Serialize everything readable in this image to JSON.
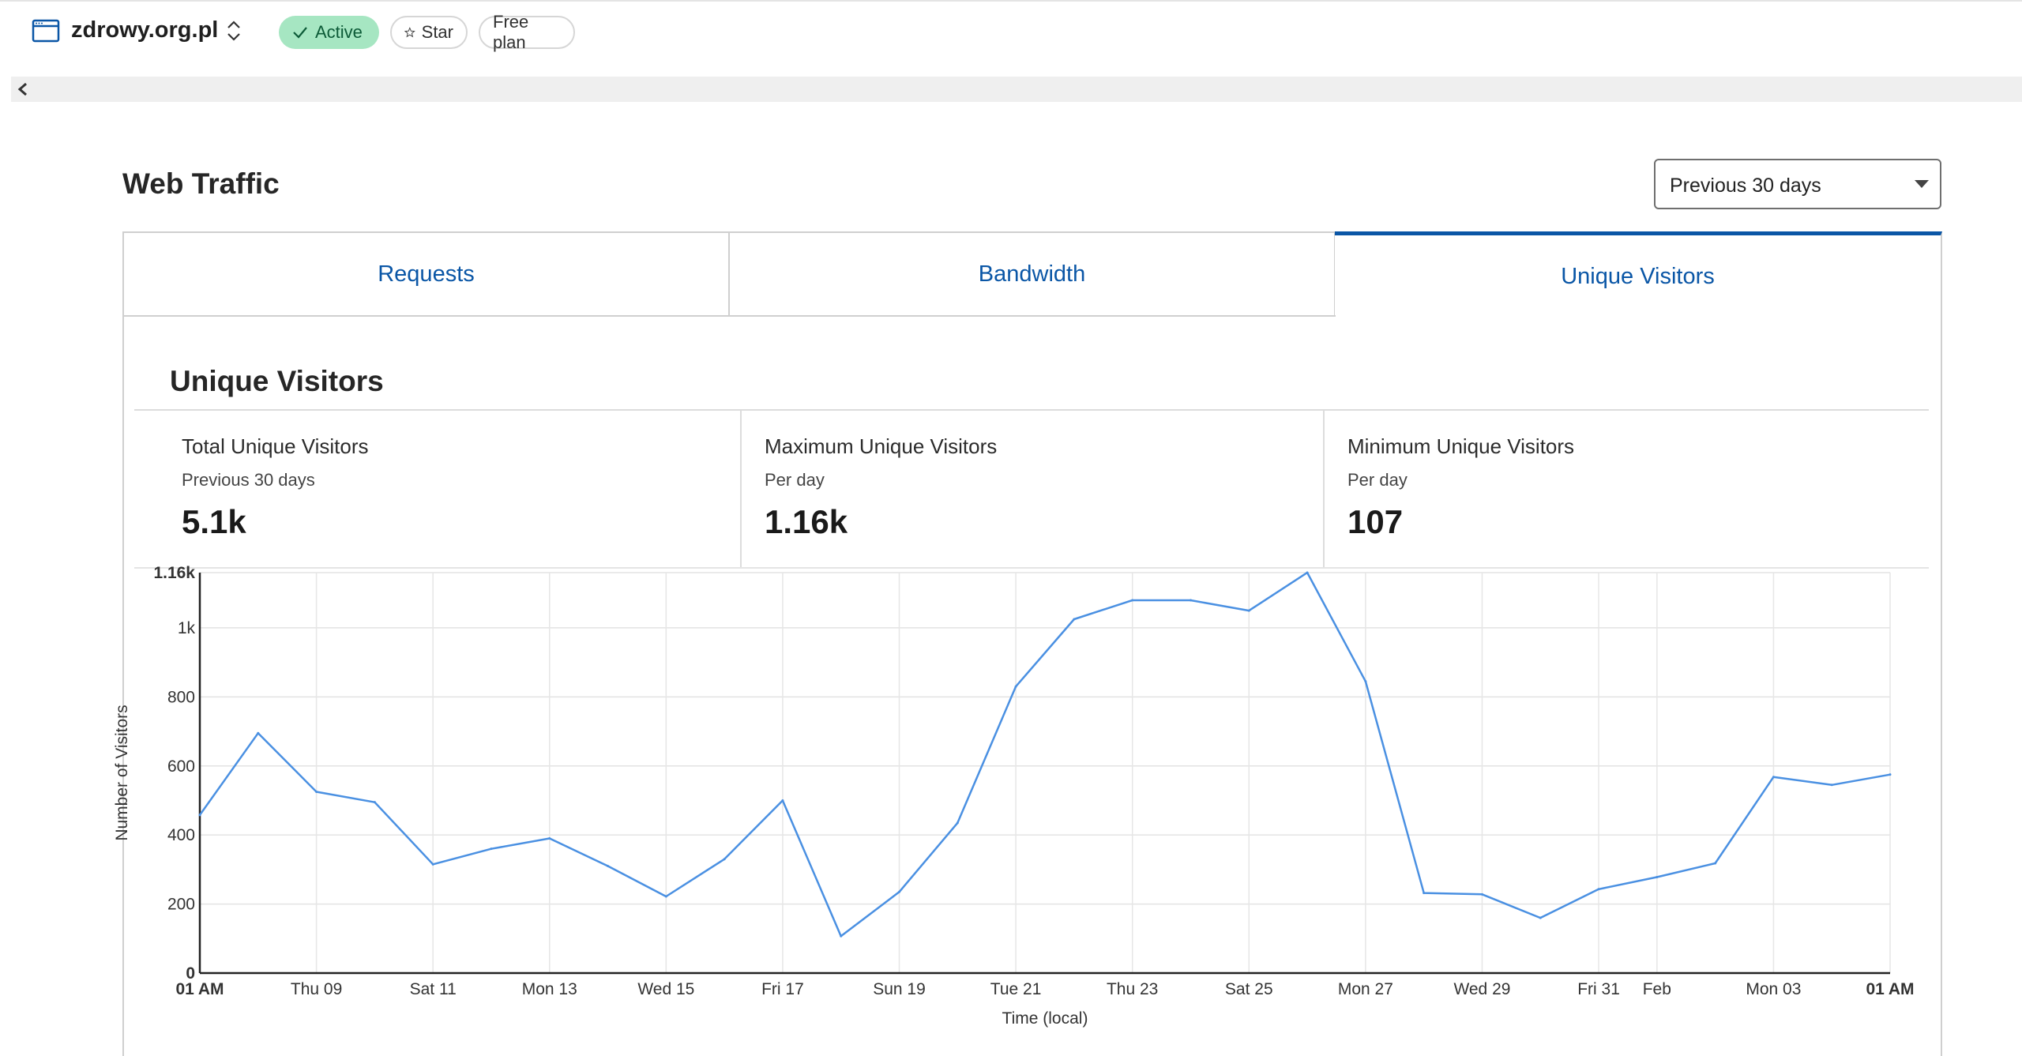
{
  "header": {
    "site_name": "zdrowy.org.pl",
    "status_label": "Active",
    "star_label": "Star",
    "plan_label": "Free plan",
    "colors": {
      "active_bg": "#a6e6c2",
      "active_text": "#0c5a37"
    }
  },
  "section": {
    "title": "Web Traffic",
    "period_select": {
      "selected": "Previous 30 days"
    }
  },
  "tabs": [
    {
      "label": "Requests",
      "selected": false
    },
    {
      "label": "Bandwidth",
      "selected": false
    },
    {
      "label": "Unique Visitors",
      "selected": true
    }
  ],
  "panel": {
    "title": "Unique Visitors",
    "stats": [
      {
        "label": "Total Unique Visitors",
        "sub": "Previous 30 days",
        "value": "5.1k"
      },
      {
        "label": "Maximum Unique Visitors",
        "sub": "Per day",
        "value": "1.16k"
      },
      {
        "label": "Minimum Unique Visitors",
        "sub": "Per day",
        "value": "107"
      }
    ]
  },
  "chart_data": {
    "type": "line",
    "xlabel": "Time (local)",
    "ylabel": "Number of Visitors",
    "ylim": [
      0,
      1160
    ],
    "y_ticks": [
      {
        "value": 0,
        "label": "0"
      },
      {
        "value": 200,
        "label": "200"
      },
      {
        "value": 400,
        "label": "400"
      },
      {
        "value": 600,
        "label": "600"
      },
      {
        "value": 800,
        "label": "800"
      },
      {
        "value": 1000,
        "label": "1k"
      },
      {
        "value": 1160,
        "label": "1.16k"
      }
    ],
    "x_ticks": [
      {
        "index": 0,
        "label": "01 AM",
        "bold": true
      },
      {
        "index": 2,
        "label": "Thu 09"
      },
      {
        "index": 4,
        "label": "Sat 11"
      },
      {
        "index": 6,
        "label": "Mon 13"
      },
      {
        "index": 8,
        "label": "Wed 15"
      },
      {
        "index": 10,
        "label": "Fri 17"
      },
      {
        "index": 12,
        "label": "Sun 19"
      },
      {
        "index": 14,
        "label": "Tue 21"
      },
      {
        "index": 16,
        "label": "Thu 23"
      },
      {
        "index": 18,
        "label": "Sat 25"
      },
      {
        "index": 20,
        "label": "Mon 27"
      },
      {
        "index": 22,
        "label": "Wed 29"
      },
      {
        "index": 24,
        "label": "Fri 31"
      },
      {
        "index": 25,
        "label": "Feb"
      },
      {
        "index": 27,
        "label": "Mon 03"
      },
      {
        "index": 29,
        "label": "01 AM",
        "bold": true
      }
    ],
    "series": [
      {
        "color": "#4a90e2",
        "values": [
          458,
          695,
          525,
          495,
          315,
          360,
          390,
          310,
          222,
          330,
          500,
          107,
          235,
          435,
          830,
          1025,
          1080,
          1080,
          1050,
          1160,
          845,
          232,
          228,
          160,
          243,
          278,
          318,
          568,
          545,
          575
        ]
      }
    ],
    "grid": true
  }
}
